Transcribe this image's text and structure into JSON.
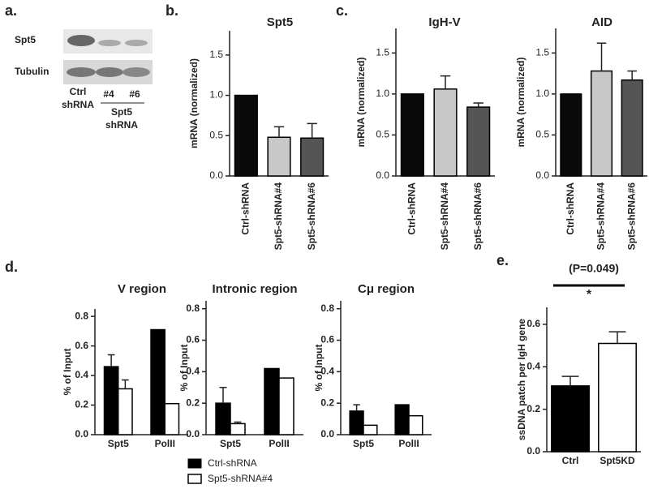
{
  "panel_labels": [
    "a.",
    "b.",
    "c.",
    "d.",
    "e."
  ],
  "blot": {
    "rows": [
      "Spt5",
      "Tubulin"
    ],
    "lane_labels": [
      "Ctrl",
      "shRNA",
      "#4",
      "#6",
      "Spt5",
      "shRNA"
    ]
  },
  "chart_data": [
    {
      "type": "bar",
      "title": "Spt5",
      "y_label": "mRNA (normalized)",
      "categories": [
        "Ctrl-shRNA",
        "Spt5-shRNA#4",
        "Spt5-shRNA#6"
      ],
      "values": [
        1.0,
        0.48,
        0.47
      ],
      "errors": [
        null,
        0.13,
        0.18
      ],
      "colors": [
        "#0a0a0a",
        "#c8c8c8",
        "#555555"
      ],
      "ylim": [
        0,
        1.8
      ],
      "yticks": [
        {
          "value": 0,
          "label": "0.0"
        },
        0.5,
        {
          "value": 1,
          "label": "1.0"
        },
        1.5
      ]
    },
    {
      "type": "bar",
      "title": "IgH-V",
      "y_label": "mRNA (normalized)",
      "categories": [
        "Ctrl-shRNA",
        "Spt5-shRNA#4",
        "Spt5-shRNA#6"
      ],
      "values": [
        1.0,
        1.06,
        0.84
      ],
      "errors": [
        null,
        0.16,
        0.05
      ],
      "colors": [
        "#0a0a0a",
        "#c8c8c8",
        "#555555"
      ],
      "ylim": [
        0,
        1.8
      ],
      "yticks": [
        {
          "value": 0,
          "label": "0.0"
        },
        0.5,
        {
          "value": 1,
          "label": "1.0"
        },
        1.5
      ]
    },
    {
      "type": "bar",
      "title": "AID",
      "y_label": "mRNA (normalized)",
      "categories": [
        "Ctrl-shRNA",
        "Spt5-shRNA#4",
        "Spt5-shRNA#6"
      ],
      "values": [
        1.0,
        1.28,
        1.17
      ],
      "errors": [
        null,
        0.34,
        0.11
      ],
      "colors": [
        "#0a0a0a",
        "#c8c8c8",
        "#555555"
      ],
      "ylim": [
        0,
        1.8
      ],
      "yticks": [
        {
          "value": 0,
          "label": "0.0"
        },
        0.5,
        {
          "value": 1,
          "label": "1.0"
        },
        1.5
      ]
    },
    {
      "type": "bar",
      "title": "V region",
      "y_label": "% of Input",
      "categories": [
        "Spt5",
        "PolII"
      ],
      "series": [
        {
          "name": "Ctrl-shRNA",
          "color": "#000000",
          "values": [
            0.46,
            0.71
          ],
          "errors": [
            0.08,
            null
          ]
        },
        {
          "name": "Spt5-shRNA#4",
          "color": "#ffffff",
          "values": [
            0.31,
            0.21
          ],
          "errors": [
            0.06,
            null
          ]
        }
      ],
      "ylim": [
        0,
        0.85
      ],
      "yticks": [
        {
          "value": 0,
          "label": "0.0"
        },
        0.2,
        0.4,
        0.6,
        0.8
      ]
    },
    {
      "type": "bar",
      "title": "Intronic region",
      "y_label": "% of Input",
      "categories": [
        "Spt5",
        "PolII"
      ],
      "series": [
        {
          "color": "#000000",
          "values": [
            0.2,
            0.42
          ],
          "errors": [
            0.1,
            null
          ]
        },
        {
          "color": "#ffffff",
          "values": [
            0.07,
            0.36
          ],
          "errors": [
            0.01,
            null
          ]
        }
      ],
      "ylim": [
        0,
        0.85
      ],
      "yticks": [
        {
          "value": 0,
          "label": "0.0"
        },
        0.2,
        0.4,
        0.6,
        0.8
      ]
    },
    {
      "type": "bar",
      "title": "Cμ region",
      "y_label": "% of Input",
      "categories": [
        "Spt5",
        "PolII"
      ],
      "series": [
        {
          "color": "#000000",
          "values": [
            0.15,
            0.19
          ],
          "errors": [
            0.04,
            null
          ]
        },
        {
          "color": "#ffffff",
          "values": [
            0.06,
            0.12
          ],
          "errors": [
            null,
            null
          ]
        }
      ],
      "ylim": [
        0,
        0.85
      ],
      "yticks": [
        {
          "value": 0,
          "label": "0.0"
        },
        0.2,
        0.4,
        0.6,
        0.8
      ]
    },
    {
      "type": "bar",
      "y_label": "ssDNA patch per IgH gene",
      "categories": [
        "Ctrl",
        "Spt5KD"
      ],
      "values": [
        0.31,
        0.51
      ],
      "errors": [
        0.045,
        0.055
      ],
      "colors": [
        "#000000",
        "#ffffff"
      ],
      "annotations": [
        "(P=0.049)",
        "*"
      ],
      "ylim": [
        0,
        0.68
      ],
      "yticks": [
        {
          "value": 0,
          "label": "0.0"
        },
        0.2,
        0.4,
        0.6
      ]
    }
  ]
}
